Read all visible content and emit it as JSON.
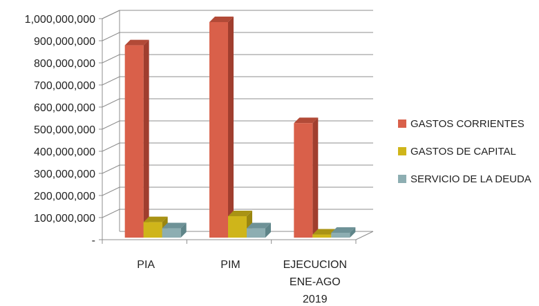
{
  "chart_data": {
    "type": "bar",
    "style": "3d-clustered",
    "categories": [
      [
        "PIA"
      ],
      [
        "PIM"
      ],
      [
        "EJECUCION",
        "ENE-AGO",
        "2019"
      ]
    ],
    "series": [
      {
        "name": "GASTOS CORRIENTES",
        "values": [
          870000000,
          975000000,
          518000000
        ],
        "color": "#D9604A",
        "side": "#A03E2E",
        "top": "#B24A37"
      },
      {
        "name": "GASTOS DE CAPITAL",
        "values": [
          70000000,
          97000000,
          14000000
        ],
        "color": "#CFB51A",
        "side": "#9A8610",
        "top": "#A99314"
      },
      {
        "name": "SERVICIO DE LA DEUDA",
        "values": [
          42000000,
          42000000,
          22000000
        ],
        "color": "#8DAEB2",
        "side": "#5F8589",
        "top": "#6E9297"
      }
    ],
    "ylim": [
      0,
      1000000000
    ],
    "y_ticks": [
      {
        "v": 0,
        "label": "-"
      },
      {
        "v": 100000000,
        "label": "100,000,000"
      },
      {
        "v": 200000000,
        "label": "200,000,000"
      },
      {
        "v": 300000000,
        "label": "300,000,000"
      },
      {
        "v": 400000000,
        "label": "400,000,000"
      },
      {
        "v": 500000000,
        "label": "500,000,000"
      },
      {
        "v": 600000000,
        "label": "600,000,000"
      },
      {
        "v": 700000000,
        "label": "700,000,000"
      },
      {
        "v": 800000000,
        "label": "800,000,000"
      },
      {
        "v": 900000000,
        "label": "900,000,000"
      },
      {
        "v": 1000000000,
        "label": "1,000,000,000"
      }
    ],
    "grid": true,
    "legend_position": "right"
  }
}
